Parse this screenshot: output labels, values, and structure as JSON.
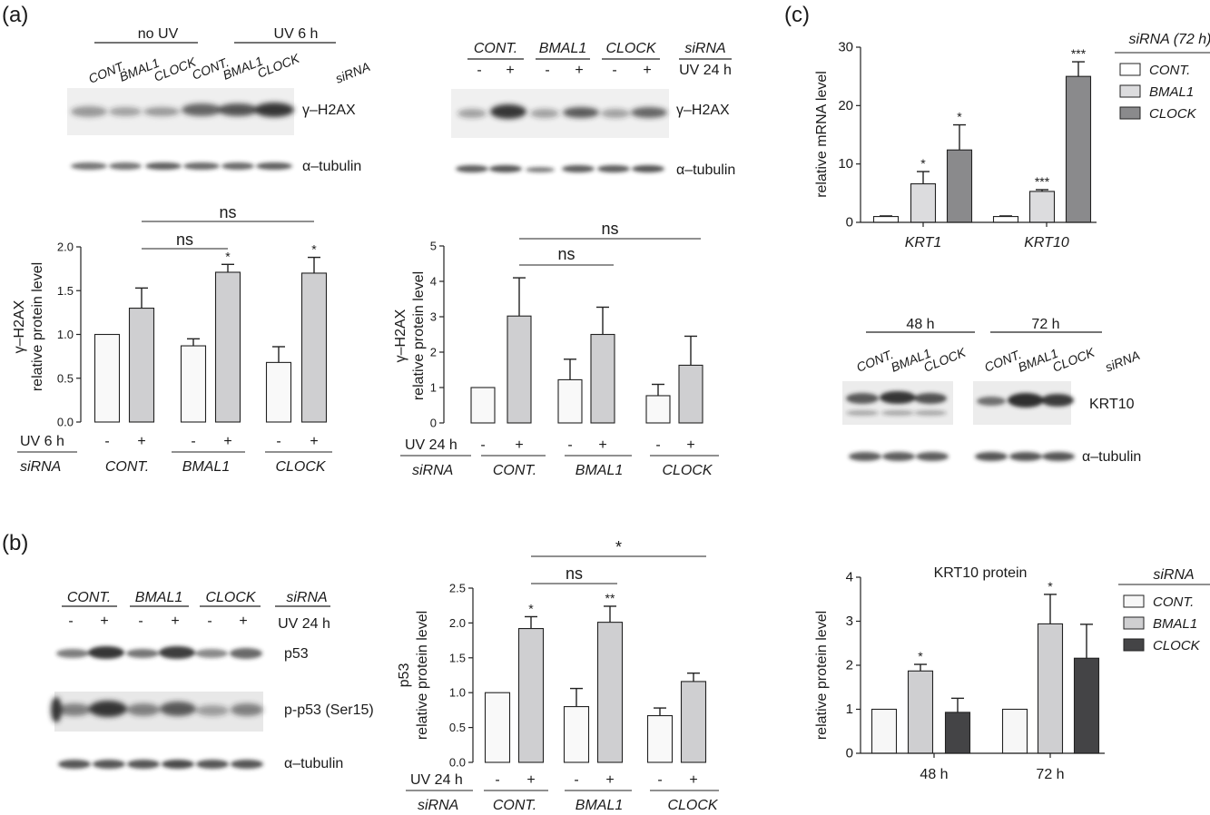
{
  "panels": {
    "a": {
      "letter": "(a)",
      "blot_left": {
        "group_labels": [
          "no UV",
          "UV 6 h"
        ],
        "lane_labels": [
          "CONT.",
          "BMAL1",
          "CLOCK",
          "CONT.",
          "BMAL1",
          "CLOCK"
        ],
        "sirna_label": "siRNA",
        "band_labels": [
          "γ–H2AX",
          "α–tubulin"
        ]
      },
      "blot_right": {
        "group_labels": [
          "CONT.",
          "BMAL1",
          "CLOCK"
        ],
        "sirna_label": "siRNA",
        "uv_signs": [
          "-",
          "+",
          "-",
          "+",
          "-",
          "+"
        ],
        "uv_label": "UV 24 h",
        "band_labels": [
          "γ–H2AX",
          "α–tubulin"
        ]
      }
    },
    "b": {
      "letter": "(b)",
      "blot": {
        "group_labels": [
          "CONT.",
          "BMAL1",
          "CLOCK"
        ],
        "sirna_label": "siRNA",
        "uv_signs": [
          "-",
          "+",
          "-",
          "+",
          "-",
          "+"
        ],
        "uv_label": "UV 24 h",
        "band_labels": [
          "p53",
          "p-p53 (Ser15)",
          "α–tubulin"
        ]
      }
    },
    "c": {
      "letter": "(c)",
      "blot": {
        "group_labels": [
          "48 h",
          "72 h"
        ],
        "lane_labels": [
          "CONT.",
          "BMAL1",
          "CLOCK",
          "CONT.",
          "BMAL1",
          "CLOCK"
        ],
        "sirna_label": "siRNA",
        "band_labels": [
          "KRT10",
          "α–tubulin"
        ]
      }
    }
  },
  "chart_data": [
    {
      "type": "bar",
      "ylabel": [
        "γ–H2AX",
        "relative protein level"
      ],
      "ylim": [
        0,
        2.0
      ],
      "yticks": [
        "0.0",
        "0.5",
        "1.0",
        "1.5",
        "2.0"
      ],
      "groups": [
        "CONT.",
        "BMAL1",
        "CLOCK"
      ],
      "uv_label": "UV 6 h",
      "uv_signs": [
        "-",
        "+"
      ],
      "sirna_label": "siRNA",
      "series": [
        {
          "values": [
            1.0,
            0.87,
            0.68
          ],
          "errors": [
            0,
            0.08,
            0.18
          ],
          "stars": [
            "",
            "",
            ""
          ],
          "color": "#f9f9f9"
        },
        {
          "values": [
            1.3,
            1.71,
            1.7
          ],
          "errors": [
            0.23,
            0.09,
            0.18
          ],
          "stars": [
            "",
            "*",
            "*"
          ],
          "color": "#cfcfd1"
        }
      ],
      "brackets": [
        {
          "label": "ns",
          "from": 1,
          "to": 3
        },
        {
          "label": "ns",
          "from": 1,
          "to": 2
        }
      ]
    },
    {
      "type": "bar",
      "ylabel": [
        "γ–H2AX",
        "relative protein level"
      ],
      "ylim": [
        0,
        5
      ],
      "yticks": [
        "0",
        "1",
        "2",
        "3",
        "4",
        "5"
      ],
      "groups": [
        "CONT.",
        "BMAL1",
        "CLOCK"
      ],
      "uv_label": "UV 24 h",
      "uv_signs": [
        "-",
        "+"
      ],
      "sirna_label": "siRNA",
      "series": [
        {
          "values": [
            1.0,
            1.22,
            0.77
          ],
          "errors": [
            0,
            0.58,
            0.32
          ],
          "stars": [
            "",
            "",
            ""
          ],
          "color": "#f9f9f9"
        },
        {
          "values": [
            3.02,
            2.5,
            1.63
          ],
          "errors": [
            1.08,
            0.77,
            0.82
          ],
          "stars": [
            "",
            "",
            ""
          ],
          "color": "#cfcfd1"
        }
      ],
      "brackets": [
        {
          "label": "ns",
          "from": 1,
          "to": 3
        },
        {
          "label": "ns",
          "from": 1,
          "to": 2
        }
      ]
    },
    {
      "type": "bar",
      "ylabel": [
        "p53",
        "relative protein level"
      ],
      "ylim": [
        0,
        2.5
      ],
      "yticks": [
        "0.0",
        "0.5",
        "1.0",
        "1.5",
        "2.0",
        "2.5"
      ],
      "groups": [
        "CONT.",
        "BMAL1",
        "CLOCK"
      ],
      "uv_label": "UV 24 h",
      "uv_signs": [
        "-",
        "+"
      ],
      "sirna_label": "siRNA",
      "series": [
        {
          "values": [
            1.0,
            0.8,
            0.67
          ],
          "errors": [
            0,
            0.26,
            0.11
          ],
          "stars": [
            "",
            "",
            ""
          ],
          "color": "#f9f9f9"
        },
        {
          "values": [
            1.92,
            2.01,
            1.16
          ],
          "errors": [
            0.17,
            0.23,
            0.12
          ],
          "stars": [
            "*",
            "**",
            ""
          ],
          "color": "#cfcfd1"
        }
      ],
      "brackets": [
        {
          "label": "*",
          "from": 1,
          "to": 3
        },
        {
          "label": "ns",
          "from": 1,
          "to": 2
        }
      ]
    },
    {
      "type": "bar",
      "ylabel": [
        "relative mRNA level"
      ],
      "ylim": [
        0,
        30
      ],
      "yticks": [
        "0",
        "10",
        "20",
        "30"
      ],
      "categories": [
        "KRT1",
        "KRT10"
      ],
      "legend_title": "siRNA (72 h)",
      "series": [
        {
          "name": "CONT.",
          "values": [
            1.0,
            1.0
          ],
          "errors": [
            0.1,
            0.1
          ],
          "stars": [
            "",
            ""
          ],
          "color": "#ffffff"
        },
        {
          "name": "BMAL1",
          "values": [
            6.6,
            5.3
          ],
          "errors": [
            2.1,
            0.3
          ],
          "stars": [
            "*",
            "***"
          ],
          "color": "#dcdcde"
        },
        {
          "name": "CLOCK",
          "values": [
            12.4,
            25.0
          ],
          "errors": [
            4.3,
            2.5
          ],
          "stars": [
            "*",
            "***"
          ],
          "color": "#8a8a8c"
        }
      ]
    },
    {
      "type": "bar",
      "title": "KRT10 protein",
      "ylabel": [
        "relative protein level"
      ],
      "ylim": [
        0,
        4
      ],
      "yticks": [
        "0",
        "1",
        "2",
        "3",
        "4"
      ],
      "categories": [
        "48 h",
        "72 h"
      ],
      "legend_title": "siRNA",
      "series": [
        {
          "name": "CONT.",
          "values": [
            1.0,
            1.0
          ],
          "errors": [
            0,
            0
          ],
          "stars": [
            "",
            ""
          ],
          "color": "#f7f7f7"
        },
        {
          "name": "BMAL1",
          "values": [
            1.87,
            2.94
          ],
          "errors": [
            0.15,
            0.67
          ],
          "stars": [
            "*",
            "*"
          ],
          "color": "#cfcfd1"
        },
        {
          "name": "CLOCK",
          "values": [
            0.93,
            2.16
          ],
          "errors": [
            0.32,
            0.77
          ],
          "stars": [
            "",
            ""
          ],
          "color": "#444446"
        }
      ]
    }
  ]
}
